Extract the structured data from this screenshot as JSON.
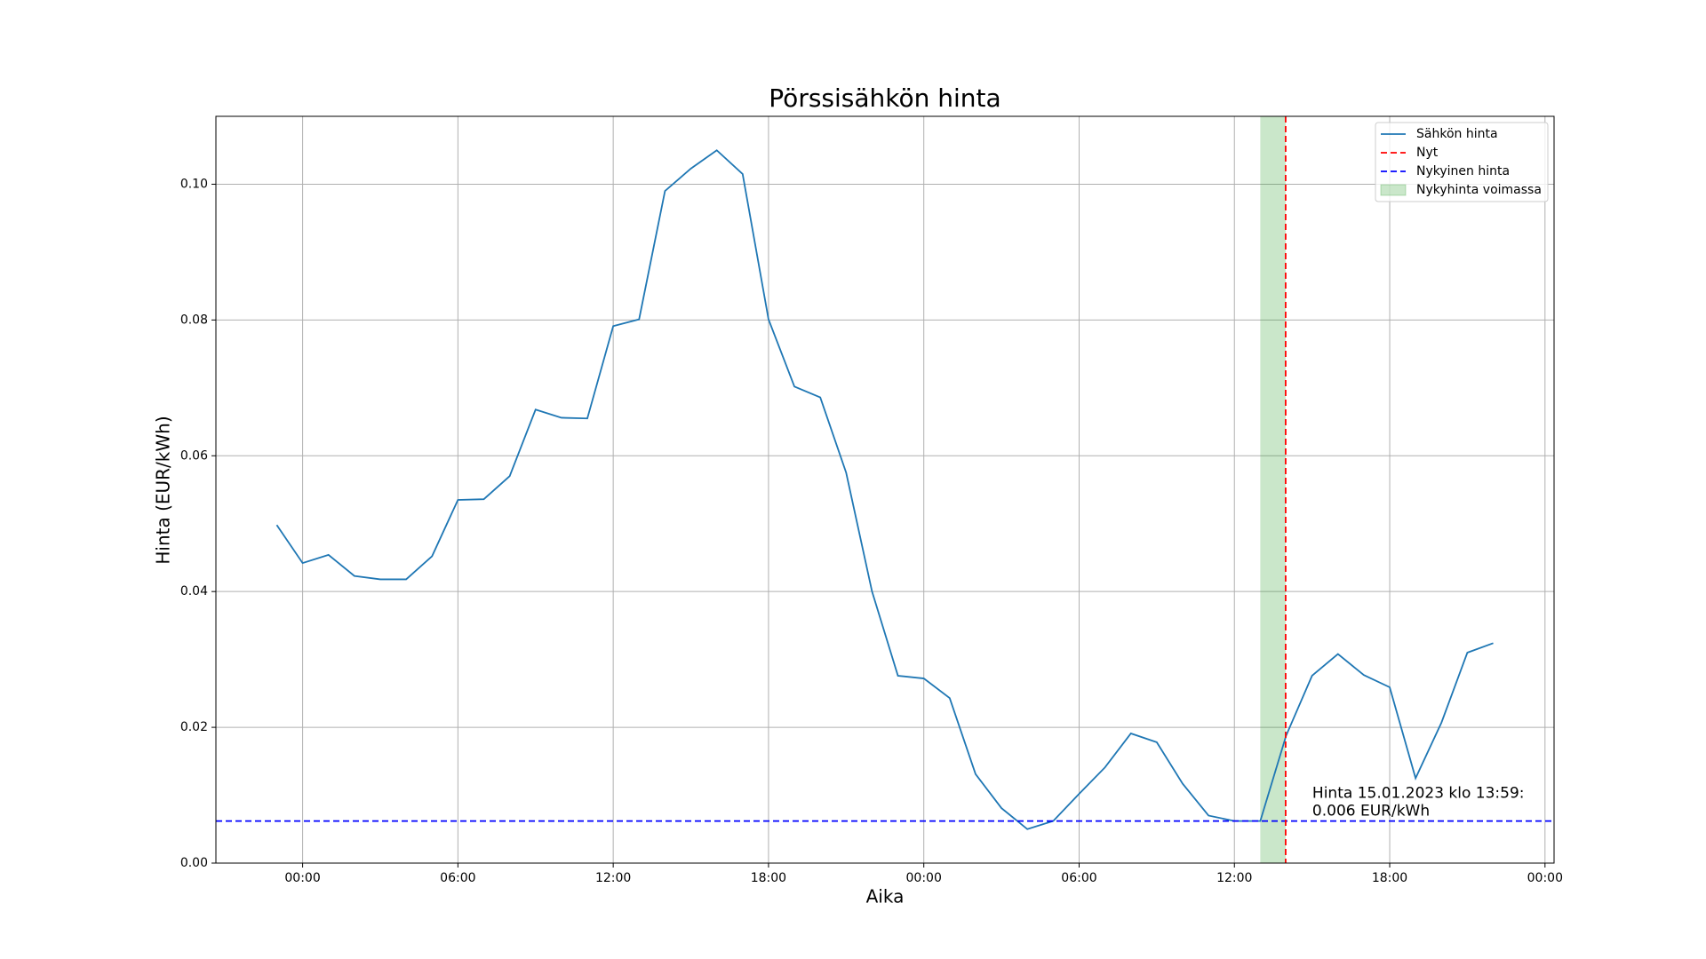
{
  "chart_data": {
    "type": "line",
    "title": "Pörssisähkön hinta",
    "xlabel": "Aika",
    "ylabel": "Hinta (EUR/kWh)",
    "x": [
      -1,
      0,
      1,
      2,
      3,
      4,
      5,
      6,
      7,
      8,
      9,
      10,
      11,
      12,
      13,
      14,
      15,
      16,
      17,
      18,
      19,
      20,
      21,
      22,
      23,
      24,
      25,
      26,
      27,
      28,
      29,
      30,
      31,
      32,
      33,
      34,
      35,
      36,
      37,
      38,
      39,
      40,
      41,
      42,
      43,
      44,
      45,
      46
    ],
    "series": [
      {
        "name": "Sähkön hinta",
        "color": "#1f77b4",
        "values": [
          0.0498,
          0.0442,
          0.0454,
          0.0423,
          0.0418,
          0.0418,
          0.0452,
          0.0535,
          0.0536,
          0.057,
          0.0668,
          0.0656,
          0.0655,
          0.0791,
          0.0801,
          0.099,
          0.1023,
          0.105,
          0.1015,
          0.0801,
          0.0702,
          0.0686,
          0.0575,
          0.04,
          0.0276,
          0.0272,
          0.0243,
          0.0131,
          0.0081,
          0.005,
          0.0062,
          0.0102,
          0.0141,
          0.0191,
          0.0178,
          0.0117,
          0.007,
          0.0062,
          0.0062,
          0.0188,
          0.0276,
          0.0308,
          0.0277,
          0.0259,
          0.0125,
          0.0207,
          0.031,
          0.0324
        ]
      }
    ],
    "now": {
      "name": "Nyt",
      "x": 37.98,
      "color": "#ff0000"
    },
    "current_price": {
      "name": "Nykyinen hinta",
      "y": 0.0062,
      "color": "#0000ff"
    },
    "valid_span": {
      "name": "Nykyhinta voimassa",
      "x": [
        37,
        37.98
      ],
      "color": "#2ca02c"
    },
    "annotation": [
      "Hinta 15.01.2023 klo 13:59:",
      "0.006 EUR/kWh"
    ],
    "xlim": [
      -3.35,
      48.35
    ],
    "ylim": [
      0,
      0.11
    ],
    "xticks": [
      {
        "value": 0,
        "label": "00:00"
      },
      {
        "value": 6,
        "label": "06:00"
      },
      {
        "value": 12,
        "label": "12:00"
      },
      {
        "value": 18,
        "label": "18:00"
      },
      {
        "value": 24,
        "label": "00:00"
      },
      {
        "value": 30,
        "label": "06:00"
      },
      {
        "value": 36,
        "label": "12:00"
      },
      {
        "value": 42,
        "label": "18:00"
      },
      {
        "value": 48,
        "label": "00:00"
      }
    ],
    "yticks": [
      {
        "value": 0,
        "label": "0.00"
      },
      {
        "value": 0.02,
        "label": "0.02"
      },
      {
        "value": 0.04,
        "label": "0.04"
      },
      {
        "value": 0.06,
        "label": "0.06"
      },
      {
        "value": 0.08,
        "label": "0.08"
      },
      {
        "value": 0.1,
        "label": "0.10"
      }
    ],
    "grid": true,
    "legend": "upper right"
  }
}
